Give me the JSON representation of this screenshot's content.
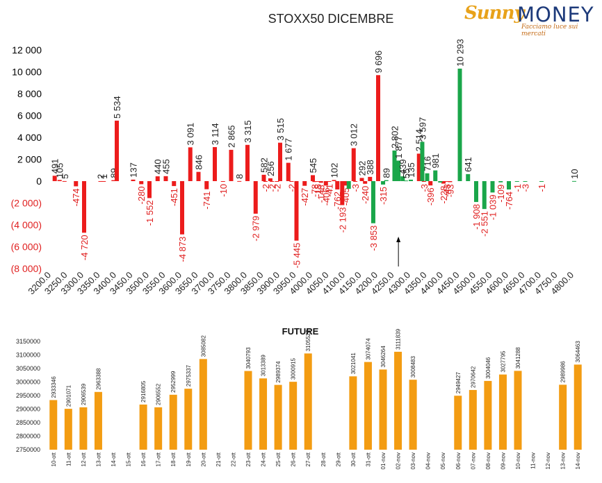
{
  "logo": {
    "part1": "Sunny",
    "part2": "MONEY",
    "tagline": "Facciamo luce sui mercati"
  },
  "chart_data": [
    {
      "type": "bar",
      "title": "STOXX50 DICEMBRE",
      "ylim": [
        -8000,
        12000
      ],
      "yticks": [
        12000,
        10000,
        8000,
        6000,
        4000,
        2000,
        0,
        -2000,
        -4000,
        -6000,
        -8000
      ],
      "ytick_labels": [
        "12 000",
        "10 000",
        "8 000",
        "6 000",
        "4 000",
        "2 000",
        "0",
        "(2 000)",
        "(4 000)",
        "(6 000)",
        "(8 000)"
      ],
      "x_range": [
        3200,
        4800
      ],
      "xticks": [
        3200,
        3250,
        3300,
        3350,
        3400,
        3450,
        3500,
        3550,
        3600,
        3650,
        3700,
        3750,
        3800,
        3850,
        3900,
        3950,
        4000,
        4050,
        4100,
        4150,
        4200,
        4250,
        4300,
        4350,
        4400,
        4450,
        4500,
        4550,
        4600,
        4650,
        4700,
        4750,
        4800
      ],
      "xtick_labels": [
        "3200.0",
        "3250.0",
        "3300.0",
        "3350.0",
        "3400.0",
        "3450.0",
        "3500.0",
        "3550.0",
        "3600.0",
        "3650.0",
        "3700.0",
        "3750.0",
        "3800.0",
        "3850.0",
        "3900.0",
        "3950.0",
        "4000.0",
        "4050.0",
        "4100.0",
        "4150.0",
        "4200.0",
        "4250.0",
        "4300.0",
        "4350.0",
        "4400.0",
        "4450.0",
        "4500.0",
        "4550.0",
        "4600.0",
        "4650.0",
        "4700.0",
        "4750.0",
        "4800.0"
      ],
      "legend": "none",
      "grid": false,
      "colors": {
        "red": "#ec1c1c",
        "green": "#1aa64a",
        "positive_axis": "#000000",
        "negative_axis": "#e02020"
      },
      "series": [
        {
          "color": "red",
          "points": [
            {
              "x": 3210,
              "y": 491,
              "label": "491"
            },
            {
              "x": 3225,
              "y": 105,
              "label": "105"
            },
            {
              "x": 3240,
              "y": 5,
              "label": "5"
            },
            {
              "x": 3275,
              "y": -474,
              "label": "-474"
            },
            {
              "x": 3300,
              "y": -4720,
              "label": "-4 720"
            },
            {
              "x": 3350,
              "y": 2,
              "label": "2"
            },
            {
              "x": 3360,
              "y": 1,
              "label": "1"
            },
            {
              "x": 3390,
              "y": 89,
              "label": "89"
            },
            {
              "x": 3400,
              "y": 5534,
              "label": "5 534"
            },
            {
              "x": 3450,
              "y": 137,
              "label": "137"
            },
            {
              "x": 3475,
              "y": -280,
              "label": "-280"
            },
            {
              "x": 3500,
              "y": -1552,
              "label": "-1 552"
            },
            {
              "x": 3525,
              "y": 440,
              "label": "440"
            },
            {
              "x": 3550,
              "y": 455,
              "label": "455"
            },
            {
              "x": 3575,
              "y": -451,
              "label": "-451"
            },
            {
              "x": 3600,
              "y": -4873,
              "label": "-4 873"
            },
            {
              "x": 3625,
              "y": 3091,
              "label": "3 091"
            },
            {
              "x": 3650,
              "y": 846,
              "label": "846"
            },
            {
              "x": 3675,
              "y": -741,
              "label": "-741"
            },
            {
              "x": 3700,
              "y": 3114,
              "label": "3 114"
            },
            {
              "x": 3725,
              "y": -10,
              "label": "-10"
            },
            {
              "x": 3750,
              "y": 2865,
              "label": "2 865"
            },
            {
              "x": 3775,
              "y": 8,
              "label": "8"
            },
            {
              "x": 3800,
              "y": 3315,
              "label": "3 315"
            },
            {
              "x": 3825,
              "y": -2979,
              "label": "-2 979"
            },
            {
              "x": 3850,
              "y": 582,
              "label": "582"
            },
            {
              "x": 3855,
              "y": -2,
              "label": "-2"
            },
            {
              "x": 3870,
              "y": 256,
              "label": "256"
            },
            {
              "x": 3875,
              "y": -2,
              "label": "-2"
            },
            {
              "x": 3890,
              "y": -2,
              "label": "-2"
            },
            {
              "x": 3900,
              "y": 3515,
              "label": "3 515"
            },
            {
              "x": 3925,
              "y": 1677,
              "label": "1 677"
            },
            {
              "x": 3935,
              "y": -2,
              "label": "-2"
            },
            {
              "x": 3950,
              "y": -5445,
              "label": "-5 445"
            },
            {
              "x": 3975,
              "y": -427,
              "label": "-427"
            },
            {
              "x": 4000,
              "y": 545,
              "label": "545"
            },
            {
              "x": 4005,
              "y": -78,
              "label": "-78"
            },
            {
              "x": 4015,
              "y": -15,
              "label": "-15"
            },
            {
              "x": 4025,
              "y": -148,
              "label": "-148"
            },
            {
              "x": 4040,
              "y": -406,
              "label": "-406"
            },
            {
              "x": 4050,
              "y": -41,
              "label": "-41"
            },
            {
              "x": 4065,
              "y": 102,
              "label": "102"
            },
            {
              "x": 4075,
              "y": -762,
              "label": "-762"
            },
            {
              "x": 4090,
              "y": -2193,
              "label": "-2 193"
            },
            {
              "x": 4100,
              "y": -405,
              "label": "-405"
            },
            {
              "x": 4125,
              "y": 3012,
              "label": "3 012"
            },
            {
              "x": 4130,
              "y": -3,
              "label": "-3"
            },
            {
              "x": 4150,
              "y": 292,
              "label": "292"
            },
            {
              "x": 4160,
              "y": -240,
              "label": "-240"
            },
            {
              "x": 4175,
              "y": 388,
              "label": "388"
            },
            {
              "x": 4200,
              "y": 9696,
              "label": "9 696"
            },
            {
              "x": 4325,
              "y": 2514,
              "label": "2 514"
            },
            {
              "x": 4340,
              "y": -3,
              "label": "-3"
            },
            {
              "x": 4360,
              "y": -396,
              "label": "-396"
            },
            {
              "x": 4400,
              "y": -228,
              "label": "-228"
            },
            {
              "x": 4410,
              "y": -43,
              "label": "-43"
            },
            {
              "x": 4420,
              "y": -93,
              "label": "-93"
            }
          ]
        },
        {
          "color": "green",
          "points": [
            {
              "x": 4110,
              "y": -707,
              "label": ""
            },
            {
              "x": 4185,
              "y": -3853,
              "label": "-3 853"
            },
            {
              "x": 4215,
              "y": -315,
              "label": "-315"
            },
            {
              "x": 4225,
              "y": 89,
              "label": "89"
            },
            {
              "x": 4250,
              "y": 2802,
              "label": "2 802"
            },
            {
              "x": 4262,
              "y": 1877,
              "label": "1 877"
            },
            {
              "x": 4275,
              "y": 439,
              "label": "439"
            },
            {
              "x": 4285,
              "y": 55,
              "label": "55"
            },
            {
              "x": 4300,
              "y": 135,
              "label": "135"
            },
            {
              "x": 4335,
              "y": 3597,
              "label": "3 597"
            },
            {
              "x": 4350,
              "y": 716,
              "label": "716"
            },
            {
              "x": 4375,
              "y": 981,
              "label": "981"
            },
            {
              "x": 4390,
              "y": -130,
              "label": ""
            },
            {
              "x": 4450,
              "y": 10293,
              "label": "10 293"
            },
            {
              "x": 4475,
              "y": 641,
              "label": "641"
            },
            {
              "x": 4500,
              "y": -1908,
              "label": "-1 908"
            },
            {
              "x": 4525,
              "y": -2551,
              "label": "-2 551"
            },
            {
              "x": 4550,
              "y": -1039,
              "label": "-1 039"
            },
            {
              "x": 4575,
              "y": -109,
              "label": "-109"
            },
            {
              "x": 4600,
              "y": -764,
              "label": "-764"
            },
            {
              "x": 4625,
              "y": -1,
              "label": "-1"
            },
            {
              "x": 4650,
              "y": -3,
              "label": "-3"
            },
            {
              "x": 4700,
              "y": -1,
              "label": "-1"
            },
            {
              "x": 4800,
              "y": 10,
              "label": "10"
            }
          ]
        }
      ]
    },
    {
      "type": "bar",
      "title": "FUTURE",
      "ylim": [
        2750000,
        3150000
      ],
      "yticks": [
        3150000,
        3100000,
        3050000,
        3000000,
        2950000,
        2900000,
        2850000,
        2800000,
        2750000
      ],
      "ytick_labels": [
        "3150000",
        "3100000",
        "3050000",
        "3000000",
        "2950000",
        "2900000",
        "2850000",
        "2800000",
        "2750000"
      ],
      "categories": [
        "10-ott",
        "11-ott",
        "12-ott",
        "13-ott",
        "14-ott",
        "15-ott",
        "16-ott",
        "17-ott",
        "18-ott",
        "19-ott",
        "20-ott",
        "21-ott",
        "22-ott",
        "23-ott",
        "24-ott",
        "25-ott",
        "26-ott",
        "27-ott",
        "28-ott",
        "29-ott",
        "30-ott",
        "31-ott",
        "01-nov",
        "02-nov",
        "03-nov",
        "04-nov",
        "05-nov",
        "06-nov",
        "07-nov",
        "08-nov",
        "09-nov",
        "10-nov",
        "11-nov",
        "12-nov",
        "13-nov",
        "14-nov"
      ],
      "values": [
        2933346,
        2901071,
        2906539,
        2963388,
        null,
        null,
        2916805,
        2906552,
        2952999,
        2975337,
        3085082,
        null,
        null,
        3040793,
        3013389,
        2989374,
        3000915,
        3105528,
        null,
        null,
        3021041,
        3074074,
        3046264,
        3111839,
        3008483,
        null,
        null,
        2949427,
        2970642,
        3004046,
        3027795,
        3041288,
        null,
        null,
        2989986,
        3064463
      ],
      "color": "#f39c12",
      "grid": false,
      "legend": "none"
    }
  ]
}
